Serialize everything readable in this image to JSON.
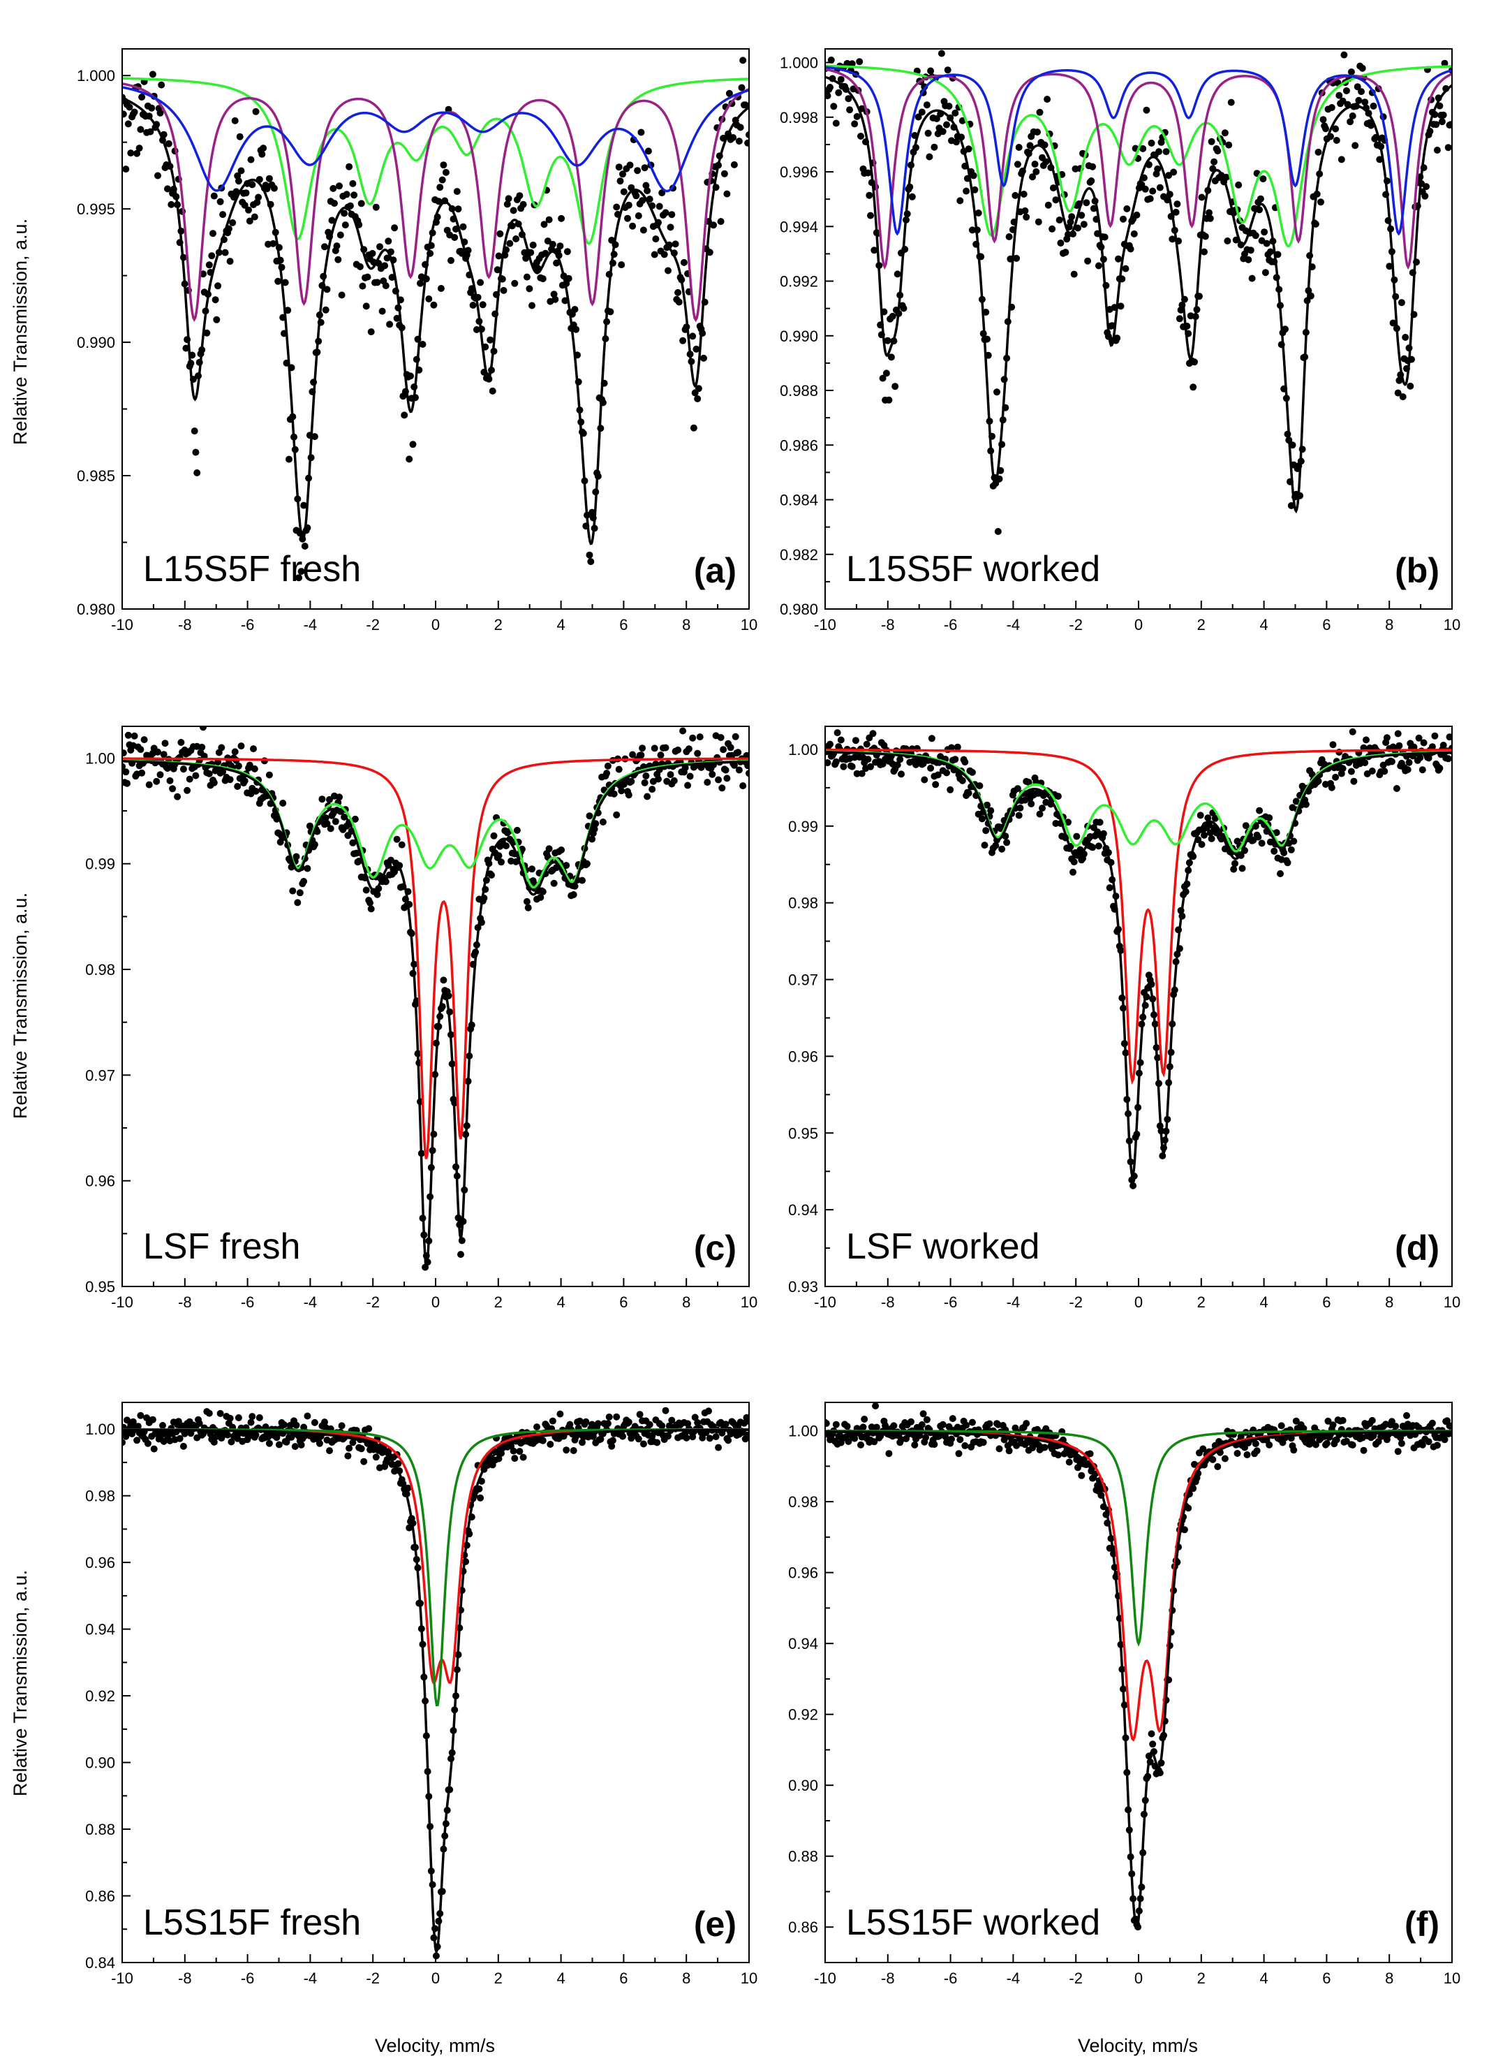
{
  "figure": {
    "x_axis_label": "Velocity, mm/s",
    "y_axis_label": "Relative Transmission, a.u."
  },
  "colors": {
    "data_points": "#000000",
    "total_fit": "#000000",
    "green": "#33ee33",
    "purple": "#992288",
    "blue": "#1122dd",
    "red": "#ee1111",
    "dark_green": "#118811"
  },
  "chart_data": [
    {
      "type": "scatter",
      "panel": "a",
      "label": "L15S5F fresh",
      "letter": "(a)",
      "xlim": [
        -10,
        10
      ],
      "ylim": [
        0.98,
        1.001
      ],
      "yticks": [
        0.98,
        0.985,
        0.99,
        0.995,
        1.0
      ],
      "ytick_labels": [
        "0.980",
        "0.985",
        "0.990",
        "0.995",
        "1.000"
      ],
      "xticks": [
        -10,
        -8,
        -6,
        -4,
        -2,
        0,
        2,
        4,
        6,
        8,
        10
      ],
      "xtick_labels": [
        "-10",
        "-8",
        "-6",
        "-4",
        "-2",
        "0",
        "2",
        "4",
        "6",
        "8",
        "10"
      ],
      "noise": 0.0011,
      "components": [
        {
          "name": "green sextet",
          "color": "green",
          "lines": [
            [
              -4.4,
              0.0058,
              0.55
            ],
            [
              -2.1,
              0.0041,
              0.55
            ],
            [
              -0.6,
              0.0022,
              0.55
            ],
            [
              1.0,
              0.0022,
              0.55
            ],
            [
              3.2,
              0.0041,
              0.55
            ],
            [
              4.9,
              0.0058,
              0.55
            ]
          ]
        },
        {
          "name": "purple sextet",
          "color": "purple",
          "lines": [
            [
              -7.7,
              0.009,
              0.38
            ],
            [
              -4.2,
              0.0083,
              0.38
            ],
            [
              -0.8,
              0.0072,
              0.38
            ],
            [
              1.7,
              0.0072,
              0.38
            ],
            [
              5.0,
              0.0083,
              0.38
            ],
            [
              8.3,
              0.009,
              0.38
            ]
          ]
        },
        {
          "name": "blue sextet",
          "color": "blue",
          "lines": [
            [
              -7.0,
              0.004,
              0.9
            ],
            [
              -4.0,
              0.0028,
              0.9
            ],
            [
              -1.0,
              0.0015,
              0.9
            ],
            [
              1.5,
              0.0015,
              0.9
            ],
            [
              4.5,
              0.0028,
              0.9
            ],
            [
              7.4,
              0.004,
              0.9
            ]
          ]
        }
      ]
    },
    {
      "type": "scatter",
      "panel": "b",
      "label": "L15S5F worked",
      "letter": "(b)",
      "xlim": [
        -10,
        10
      ],
      "ylim": [
        0.98,
        1.0005
      ],
      "yticks": [
        0.98,
        0.982,
        0.984,
        0.986,
        0.988,
        0.99,
        0.992,
        0.994,
        0.996,
        0.998,
        1.0
      ],
      "ytick_labels": [
        "0.980",
        "0.982",
        "0.984",
        "0.986",
        "0.988",
        "0.990",
        "0.992",
        "0.994",
        "0.996",
        "0.998",
        "1.000"
      ],
      "xticks": [
        -10,
        -8,
        -6,
        -4,
        -2,
        0,
        2,
        4,
        6,
        8,
        10
      ],
      "xtick_labels": [
        "-10",
        "-8",
        "-6",
        "-4",
        "-2",
        "0",
        "2",
        "4",
        "6",
        "8",
        "10"
      ],
      "noise": 0.0011,
      "components": [
        {
          "name": "green sextet",
          "color": "green",
          "lines": [
            [
              -4.7,
              0.006,
              0.55
            ],
            [
              -2.2,
              0.0048,
              0.55
            ],
            [
              -0.3,
              0.0028,
              0.55
            ],
            [
              1.3,
              0.0028,
              0.55
            ],
            [
              3.3,
              0.0048,
              0.55
            ],
            [
              4.8,
              0.006,
              0.55
            ]
          ]
        },
        {
          "name": "purple sextet",
          "color": "purple",
          "lines": [
            [
              -8.1,
              0.0074,
              0.32
            ],
            [
              -4.6,
              0.0064,
              0.32
            ],
            [
              -0.9,
              0.0058,
              0.32
            ],
            [
              1.7,
              0.0058,
              0.32
            ],
            [
              5.1,
              0.0064,
              0.32
            ],
            [
              8.6,
              0.0074,
              0.32
            ]
          ]
        },
        {
          "name": "blue sextet",
          "color": "blue",
          "lines": [
            [
              -7.7,
              0.0062,
              0.35
            ],
            [
              -4.3,
              0.0044,
              0.35
            ],
            [
              -0.8,
              0.0019,
              0.35
            ],
            [
              1.6,
              0.0019,
              0.35
            ],
            [
              5.0,
              0.0044,
              0.35
            ],
            [
              8.3,
              0.0062,
              0.35
            ]
          ]
        }
      ]
    },
    {
      "type": "scatter",
      "panel": "c",
      "label": "LSF fresh",
      "letter": "(c)",
      "xlim": [
        -10,
        10
      ],
      "ylim": [
        0.95,
        1.003
      ],
      "yticks": [
        0.95,
        0.96,
        0.97,
        0.98,
        0.99,
        1.0
      ],
      "ytick_labels": [
        "0.95",
        "0.96",
        "0.97",
        "0.98",
        "0.99",
        "1.00"
      ],
      "xticks": [
        -10,
        -8,
        -6,
        -4,
        -2,
        0,
        2,
        4,
        6,
        8,
        10
      ],
      "xtick_labels": [
        "-10",
        "-8",
        "-6",
        "-4",
        "-2",
        "0",
        "2",
        "4",
        "6",
        "8",
        "10"
      ],
      "noise": 0.0012,
      "components": [
        {
          "name": "red doublet",
          "color": "red",
          "lines": [
            [
              -0.3,
              0.036,
              0.27
            ],
            [
              0.8,
              0.034,
              0.27
            ]
          ]
        },
        {
          "name": "green sextet",
          "color": "green",
          "lines": [
            [
              -4.4,
              0.0095,
              0.6
            ],
            [
              -2.0,
              0.0095,
              0.6
            ],
            [
              -0.2,
              0.0075,
              0.6
            ],
            [
              1.1,
              0.0075,
              0.6
            ],
            [
              3.1,
              0.0095,
              0.6
            ],
            [
              4.4,
              0.0095,
              0.6
            ]
          ]
        }
      ]
    },
    {
      "type": "scatter",
      "panel": "d",
      "label": "LSF worked",
      "letter": "(d)",
      "xlim": [
        -10,
        10
      ],
      "ylim": [
        0.93,
        1.003
      ],
      "yticks": [
        0.93,
        0.94,
        0.95,
        0.96,
        0.97,
        0.98,
        0.99,
        1.0
      ],
      "ytick_labels": [
        "0.93",
        "0.94",
        "0.95",
        "0.96",
        "0.97",
        "0.98",
        "0.99",
        "1.00"
      ],
      "xticks": [
        -10,
        -8,
        -6,
        -4,
        -2,
        0,
        2,
        4,
        6,
        8,
        10
      ],
      "xtick_labels": [
        "-10",
        "-8",
        "-6",
        "-4",
        "-2",
        "0",
        "2",
        "4",
        "6",
        "8",
        "10"
      ],
      "noise": 0.0013,
      "components": [
        {
          "name": "red doublet",
          "color": "red",
          "lines": [
            [
              -0.2,
              0.04,
              0.3
            ],
            [
              0.8,
              0.039,
              0.3
            ]
          ]
        },
        {
          "name": "green sextet",
          "color": "green",
          "lines": [
            [
              -4.5,
              0.0105,
              0.6
            ],
            [
              -2.0,
              0.0105,
              0.6
            ],
            [
              -0.2,
              0.0092,
              0.6
            ],
            [
              1.2,
              0.0092,
              0.6
            ],
            [
              3.1,
              0.0105,
              0.6
            ],
            [
              4.6,
              0.0105,
              0.6
            ]
          ]
        }
      ]
    },
    {
      "type": "scatter",
      "panel": "e",
      "label": "L5S15F fresh",
      "letter": "(e)",
      "xlim": [
        -10,
        10
      ],
      "ylim": [
        0.84,
        1.008
      ],
      "yticks": [
        0.84,
        0.86,
        0.88,
        0.9,
        0.92,
        0.94,
        0.96,
        0.98,
        1.0
      ],
      "ytick_labels": [
        "0.84",
        "0.86",
        "0.88",
        "0.90",
        "0.92",
        "0.94",
        "0.96",
        "0.98",
        "1.00"
      ],
      "xticks": [
        -10,
        -8,
        -6,
        -4,
        -2,
        0,
        2,
        4,
        6,
        8,
        10
      ],
      "xtick_labels": [
        "-10",
        "-8",
        "-6",
        "-4",
        "-2",
        "0",
        "2",
        "4",
        "6",
        "8",
        "10"
      ],
      "noise": 0.0022,
      "components": [
        {
          "name": "red doublet",
          "color": "red",
          "lines": [
            [
              -0.1,
              0.06,
              0.35
            ],
            [
              0.5,
              0.06,
              0.35
            ]
          ]
        },
        {
          "name": "green singlet",
          "color": "dark_green",
          "lines": [
            [
              0.05,
              0.083,
              0.3
            ]
          ]
        }
      ]
    },
    {
      "type": "scatter",
      "panel": "f",
      "label": "L5S15F worked",
      "letter": "(f)",
      "xlim": [
        -10,
        10
      ],
      "ylim": [
        0.85,
        1.008
      ],
      "yticks": [
        0.86,
        0.88,
        0.9,
        0.92,
        0.94,
        0.96,
        0.98,
        1.0
      ],
      "ytick_labels": [
        "0.86",
        "0.88",
        "0.90",
        "0.92",
        "0.94",
        "0.96",
        "0.98",
        "1.00"
      ],
      "xticks": [
        -10,
        -8,
        -6,
        -4,
        -2,
        0,
        2,
        4,
        6,
        8,
        10
      ],
      "xtick_labels": [
        "-10",
        "-8",
        "-6",
        "-4",
        "-2",
        "0",
        "2",
        "4",
        "6",
        "8",
        "10"
      ],
      "noise": 0.0022,
      "components": [
        {
          "name": "red doublet",
          "color": "red",
          "lines": [
            [
              -0.2,
              0.075,
              0.4
            ],
            [
              0.7,
              0.072,
              0.4
            ]
          ]
        },
        {
          "name": "green singlet",
          "color": "dark_green",
          "lines": [
            [
              0.0,
              0.06,
              0.3
            ]
          ]
        }
      ]
    }
  ]
}
